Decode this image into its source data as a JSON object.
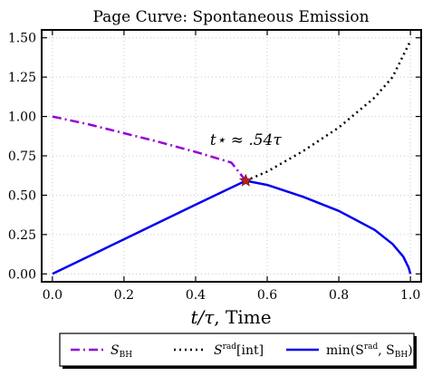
{
  "chart_data": {
    "type": "line",
    "title": "Page Curve: Spontaneous Emission",
    "xlabel": {
      "math": "t/τ",
      "text": ", Time"
    },
    "ylabel": "",
    "xlim": [
      -0.03,
      1.03
    ],
    "ylim": [
      -0.05,
      1.55
    ],
    "xticks": [
      0.0,
      0.2,
      0.4,
      0.6,
      0.8,
      1.0
    ],
    "xtick_labels": [
      "0.0",
      "0.2",
      "0.4",
      "0.6",
      "0.8",
      "1.0"
    ],
    "yticks": [
      0.0,
      0.25,
      0.5,
      0.75,
      1.0,
      1.25,
      1.5
    ],
    "ytick_labels": [
      "0.00",
      "0.25",
      "0.50",
      "0.75",
      "1.00",
      "1.25",
      "1.50"
    ],
    "grid": true,
    "legend_position": "below plot, centered",
    "series": [
      {
        "name": {
          "base": "S",
          "sub": "BH",
          "sup": ""
        },
        "legend_text": "S_BH",
        "color": "#9400D3",
        "style": "dashdot",
        "x": [
          0.0,
          0.1,
          0.2,
          0.3,
          0.4,
          0.5,
          0.54
        ],
        "y": [
          1.0,
          0.951,
          0.894,
          0.837,
          0.775,
          0.707,
          0.592
        ]
      },
      {
        "name": {
          "base": "S",
          "sub": "",
          "sup": "rad",
          "suffix": "[int]"
        },
        "legend_text": "S^rad[int]",
        "color": "#000000",
        "style": "dotted",
        "x": [
          0.54,
          0.6,
          0.7,
          0.8,
          0.9,
          0.95,
          1.0
        ],
        "y": [
          0.592,
          0.65,
          0.78,
          0.93,
          1.12,
          1.25,
          1.48
        ]
      },
      {
        "name": {
          "base": "min(S",
          "sup": "rad",
          "mid": ", S",
          "sub": "BH",
          "suffix": ")"
        },
        "legend_text": "min(S^rad, S_BH)",
        "color": "#0000EE",
        "style": "solid",
        "x": [
          0.0,
          0.1,
          0.2,
          0.3,
          0.4,
          0.54,
          0.6,
          0.7,
          0.8,
          0.9,
          0.95,
          0.98,
          0.995,
          1.0
        ],
        "y": [
          0.0,
          0.11,
          0.22,
          0.33,
          0.44,
          0.592,
          0.565,
          0.49,
          0.4,
          0.28,
          0.19,
          0.11,
          0.04,
          0.0
        ]
      }
    ],
    "marker": {
      "x": 0.54,
      "y": 0.592,
      "shape": "star",
      "color": "#B22222"
    },
    "annotation": {
      "text": "t⋆ ≈ .54τ",
      "x": 0.54,
      "y": 0.82
    }
  }
}
